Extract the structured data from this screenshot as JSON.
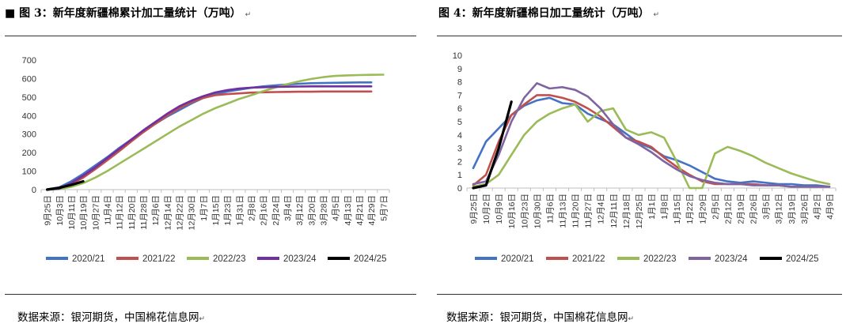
{
  "charts": [
    {
      "title": "图 3：新年度新疆棉累计加工量统计（万吨）",
      "prefix": "■",
      "source": "数据来源：银河期货，中国棉花信息网",
      "paragraph_mark": "↵",
      "chart_data": {
        "type": "line",
        "title": "",
        "xlabel": "",
        "ylabel": "",
        "ylim": [
          0,
          700
        ],
        "yticks": [
          0,
          100,
          200,
          300,
          400,
          500,
          600,
          700
        ],
        "x_categories": [
          "9月25日",
          "10月3日",
          "10月11日",
          "10月19日",
          "10月27日",
          "11月4日",
          "11月12日",
          "11月20日",
          "11月28日",
          "12月6日",
          "12月14日",
          "12月22日",
          "12月30日",
          "1月7日",
          "1月15日",
          "1月23日",
          "1月31日",
          "2月8日",
          "2月16日",
          "2月24日",
          "3月4日",
          "3月12日",
          "3月20日",
          "3月28日",
          "4月5日",
          "4月13日",
          "4月21日",
          "4月29日",
          "5月7日"
        ],
        "x_tick_labels": [
          "9月25日",
          "10月3日",
          "10月11日",
          "10月19日",
          "10月27日",
          "11月4日",
          "11月12日",
          "11月20日",
          "11月28日",
          "12月6日",
          "12月14日",
          "12月22日",
          "12月30日",
          "1月7日",
          "1月15日",
          "1月23日",
          "1月31日",
          "2月8日",
          "2月16日",
          "2月24日",
          "3月4日",
          "3月12日",
          "3月20日",
          "3月28日",
          "4月5日",
          "4月13日",
          "4月21日",
          "4月29日",
          "5月7日"
        ],
        "grid": false,
        "legend": "bottom",
        "series": [
          {
            "name": "2020/21",
            "color": "#4472C4",
            "values": [
              2,
              12,
              45,
              85,
              130,
              175,
              225,
              270,
              315,
              355,
              395,
              430,
              465,
              495,
              515,
              530,
              540,
              550,
              558,
              563,
              568,
              572,
              575,
              576,
              577,
              578,
              579,
              579,
              null
            ]
          },
          {
            "name": "2021/22",
            "color": "#C0504D",
            "values": [
              1,
              8,
              30,
              65,
              110,
              158,
              208,
              260,
              310,
              355,
              400,
              440,
              472,
              495,
              510,
              516,
              520,
              524,
              526,
              527,
              528,
              529,
              529,
              530,
              530,
              530,
              530,
              530,
              null
            ]
          },
          {
            "name": "2022/23",
            "color": "#9BBB59",
            "values": [
              0,
              3,
              15,
              35,
              65,
              100,
              140,
              180,
              220,
              260,
              300,
              340,
              375,
              410,
              440,
              465,
              490,
              510,
              532,
              552,
              570,
              585,
              598,
              608,
              614,
              617,
              619,
              620,
              621
            ]
          },
          {
            "name": "2023/24",
            "color": "#7030A0",
            "values": [
              0,
              5,
              35,
              75,
              120,
              170,
              220,
              270,
              320,
              365,
              410,
              450,
              480,
              505,
              525,
              538,
              546,
              551,
              553,
              555,
              556,
              557,
              558,
              558,
              558,
              558,
              558,
              558,
              null
            ]
          },
          {
            "name": "2024/25",
            "color": "#000000",
            "values": [
              0,
              10,
              25,
              45,
              null,
              null,
              null,
              null,
              null,
              null,
              null,
              null,
              null,
              null,
              null,
              null,
              null,
              null,
              null,
              null,
              null,
              null,
              null,
              null,
              null,
              null,
              null,
              null,
              null
            ]
          }
        ]
      }
    },
    {
      "title": "图 4：新年度新疆棉日加工量统计（万吨）",
      "prefix": "",
      "source": "数据来源：银河期货，中国棉花信息网",
      "paragraph_mark": "↵",
      "chart_data": {
        "type": "line",
        "title": "",
        "xlabel": "",
        "ylabel": "",
        "ylim": [
          0,
          10
        ],
        "yticks": [
          0,
          1,
          2,
          3,
          4,
          5,
          6,
          7,
          8,
          9,
          10
        ],
        "x_categories": [
          "9月25日",
          "10月2日",
          "10月9日",
          "10月16日",
          "10月23日",
          "10月30日",
          "11月6日",
          "11月13日",
          "11月20日",
          "11月27日",
          "12月4日",
          "12月11日",
          "12月18日",
          "12月25日",
          "1月1日",
          "1月8日",
          "1月15日",
          "1月22日",
          "1月29日",
          "2月5日",
          "2月12日",
          "2月19日",
          "2月26日",
          "3月5日",
          "3月12日",
          "3月19日",
          "3月26日",
          "4月2日",
          "4月9日"
        ],
        "x_tick_labels": [
          "9月25日",
          "10月2日",
          "10月9日",
          "10月16日",
          "10月23日",
          "10月30日",
          "11月6日",
          "11月13日",
          "11月20日",
          "11月27日",
          "12月4日",
          "12月11日",
          "12月18日",
          "12月25日",
          "1月1日",
          "1月8日",
          "1月15日",
          "1月22日",
          "1月29日",
          "2月5日",
          "2月12日",
          "2月19日",
          "2月26日",
          "3月5日",
          "3月12日",
          "3月19日",
          "3月26日",
          "4月2日",
          "4月9日"
        ],
        "grid": false,
        "legend": "bottom",
        "series": [
          {
            "name": "2020/21",
            "color": "#4472C4",
            "values": [
              1.5,
              3.5,
              4.5,
              5.5,
              6.2,
              6.6,
              6.8,
              6.4,
              6.3,
              5.6,
              5.2,
              4.8,
              4.1,
              3.4,
              3.0,
              2.4,
              2.1,
              1.7,
              1.2,
              0.7,
              0.5,
              0.4,
              0.5,
              0.4,
              0.3,
              0.3,
              0.2,
              0.2,
              0.1
            ]
          },
          {
            "name": "2021/22",
            "color": "#C0504D",
            "values": [
              0.2,
              1.0,
              3.5,
              5.5,
              6.3,
              7.0,
              7.0,
              6.8,
              6.5,
              6.0,
              5.4,
              4.6,
              3.8,
              3.5,
              3.1,
              2.3,
              1.6,
              1.0,
              0.5,
              0.3,
              0.3,
              0.3,
              0.3,
              0.2,
              0.2,
              0.1,
              0.1,
              0.1,
              0.1
            ]
          },
          {
            "name": "2022/23",
            "color": "#9BBB59",
            "values": [
              0.1,
              0.3,
              1.0,
              2.5,
              4.0,
              5.0,
              5.6,
              6.0,
              6.3,
              5.0,
              5.8,
              6.0,
              4.4,
              4.0,
              4.2,
              3.8,
              2.0,
              0.0,
              0.0,
              2.6,
              3.1,
              2.8,
              2.4,
              1.9,
              1.5,
              1.1,
              0.8,
              0.5,
              0.3
            ]
          },
          {
            "name": "2023/24",
            "color": "#8064A2",
            "values": [
              0.3,
              0.5,
              2.5,
              5.0,
              6.8,
              7.9,
              7.5,
              7.6,
              7.4,
              6.9,
              6.0,
              4.8,
              3.8,
              3.3,
              2.7,
              2.0,
              1.4,
              0.9,
              0.6,
              0.4,
              0.3,
              0.3,
              0.2,
              0.2,
              0.2,
              0.1,
              0.1,
              0.1,
              0.1
            ]
          },
          {
            "name": "2024/25",
            "color": "#000000",
            "values": [
              0.0,
              0.2,
              3.0,
              6.5,
              null,
              null,
              null,
              null,
              null,
              null,
              null,
              null,
              null,
              null,
              null,
              null,
              null,
              null,
              null,
              null,
              null,
              null,
              null,
              null,
              null,
              null,
              null,
              null,
              null
            ]
          }
        ]
      }
    }
  ]
}
